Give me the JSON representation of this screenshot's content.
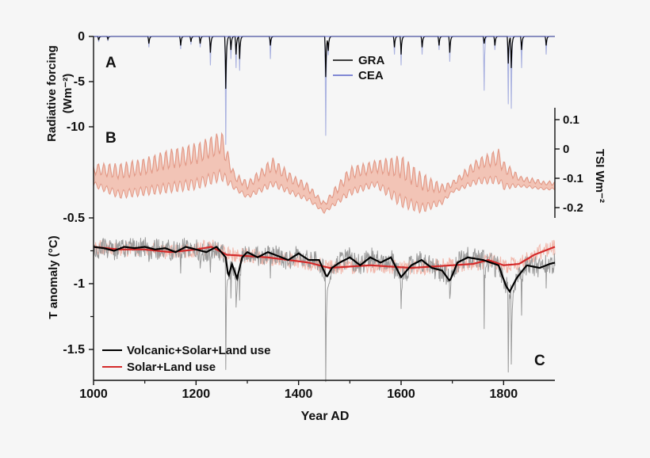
{
  "chart_data": [
    {
      "panel": "A",
      "type": "line",
      "ylabel": "Radiative forcing (Wm⁻²)",
      "ylabel_line1": "Radiative forcing",
      "ylabel_line2": "(Wm⁻²)",
      "ylim": [
        -12,
        0.5
      ],
      "yticks": [
        "0",
        "-5",
        "-10"
      ],
      "legend": [
        "GRA",
        "CEA"
      ],
      "legend_placement": "top-center",
      "series": [
        {
          "name": "GRA",
          "color": "#000000"
        },
        {
          "name": "CEA",
          "color": "#5a64c8"
        }
      ],
      "baseline": 0,
      "eruptions": [
        {
          "year": 1010,
          "GRA": -0.4,
          "CEA": -0.6
        },
        {
          "year": 1028,
          "GRA": -0.3,
          "CEA": -0.5
        },
        {
          "year": 1108,
          "GRA": -0.8,
          "CEA": -1.2
        },
        {
          "year": 1170,
          "GRA": -1.0,
          "CEA": -1.4
        },
        {
          "year": 1190,
          "GRA": -0.6,
          "CEA": -0.9
        },
        {
          "year": 1208,
          "GRA": -0.8,
          "CEA": -1.2
        },
        {
          "year": 1228,
          "GRA": -1.8,
          "CEA": -3.2
        },
        {
          "year": 1258,
          "GRA": -5.8,
          "CEA": -12.0
        },
        {
          "year": 1268,
          "GRA": -1.5,
          "CEA": -2.5
        },
        {
          "year": 1278,
          "GRA": -2.0,
          "CEA": -3.5
        },
        {
          "year": 1285,
          "GRA": -2.5,
          "CEA": -3.8
        },
        {
          "year": 1345,
          "GRA": -1.0,
          "CEA": -2.5
        },
        {
          "year": 1453,
          "GRA": -4.5,
          "CEA": -11.0
        },
        {
          "year": 1458,
          "GRA": -1.5,
          "CEA": -2.0
        },
        {
          "year": 1587,
          "GRA": -1.2,
          "CEA": -2.0
        },
        {
          "year": 1600,
          "GRA": -2.0,
          "CEA": -3.2
        },
        {
          "year": 1641,
          "GRA": -1.2,
          "CEA": -2.0
        },
        {
          "year": 1674,
          "GRA": -1.0,
          "CEA": -1.5
        },
        {
          "year": 1695,
          "GRA": -1.8,
          "CEA": -2.8
        },
        {
          "year": 1762,
          "GRA": -0.8,
          "CEA": -6.0
        },
        {
          "year": 1783,
          "GRA": -1.0,
          "CEA": -1.5
        },
        {
          "year": 1809,
          "GRA": -3.0,
          "CEA": -7.5
        },
        {
          "year": 1815,
          "GRA": -3.5,
          "CEA": -8.0
        },
        {
          "year": 1835,
          "GRA": -1.5,
          "CEA": -3.5
        },
        {
          "year": 1883,
          "GRA": -1.0,
          "CEA": -2.0
        }
      ]
    },
    {
      "panel": "B",
      "type": "area",
      "ylabel": "TSI Wm⁻²",
      "ylim": [
        -0.23,
        0.15
      ],
      "yticks": [
        "0.1",
        "0",
        "-0.1",
        "-0.2"
      ],
      "color": "#e29a88",
      "x": [
        1000,
        1050,
        1100,
        1150,
        1200,
        1250,
        1275,
        1300,
        1350,
        1390,
        1420,
        1450,
        1500,
        1550,
        1600,
        1640,
        1680,
        1700,
        1750,
        1790,
        1800,
        1830,
        1880,
        1900
      ],
      "upper": [
        -0.05,
        -0.05,
        -0.03,
        0.0,
        0.02,
        0.06,
        -0.08,
        -0.11,
        -0.03,
        -0.09,
        -0.12,
        -0.18,
        -0.06,
        -0.04,
        -0.02,
        -0.08,
        -0.12,
        -0.11,
        -0.03,
        0.0,
        -0.04,
        -0.09,
        -0.11,
        -0.11
      ],
      "lower": [
        -0.13,
        -0.17,
        -0.16,
        -0.15,
        -0.14,
        -0.11,
        -0.14,
        -0.17,
        -0.13,
        -0.16,
        -0.18,
        -0.22,
        -0.16,
        -0.13,
        -0.2,
        -0.22,
        -0.19,
        -0.15,
        -0.12,
        -0.12,
        -0.14,
        -0.13,
        -0.14,
        -0.14
      ]
    },
    {
      "panel": "C",
      "type": "line",
      "xlabel": "Year AD",
      "ylabel": "T anomaly (°C)",
      "xlim": [
        1000,
        1900
      ],
      "ylim": [
        -1.65,
        -0.5
      ],
      "xticks": [
        "1000",
        "1200",
        "1400",
        "1600",
        "1800"
      ],
      "yticks": [
        "-0.5",
        "-1",
        "-1.5"
      ],
      "legend_placement": "bottom-left",
      "series": [
        {
          "name": "Volcanic+Solar+Land use",
          "color": "#000000",
          "x": [
            1000,
            1020,
            1040,
            1060,
            1080,
            1100,
            1120,
            1140,
            1160,
            1180,
            1200,
            1220,
            1240,
            1258,
            1263,
            1270,
            1280,
            1290,
            1300,
            1320,
            1340,
            1360,
            1380,
            1400,
            1420,
            1440,
            1455,
            1465,
            1480,
            1500,
            1520,
            1540,
            1560,
            1580,
            1600,
            1620,
            1640,
            1660,
            1680,
            1695,
            1710,
            1730,
            1760,
            1790,
            1805,
            1812,
            1825,
            1845,
            1870,
            1890,
            1900
          ],
          "y": [
            -0.72,
            -0.73,
            -0.75,
            -0.72,
            -0.73,
            -0.72,
            -0.74,
            -0.73,
            -0.76,
            -0.72,
            -0.74,
            -0.76,
            -0.72,
            -0.8,
            -0.95,
            -0.85,
            -0.96,
            -0.8,
            -0.76,
            -0.8,
            -0.76,
            -0.79,
            -0.82,
            -0.77,
            -0.82,
            -0.82,
            -0.95,
            -0.88,
            -0.84,
            -0.8,
            -0.86,
            -0.8,
            -0.84,
            -0.8,
            -0.95,
            -0.86,
            -0.82,
            -0.88,
            -0.9,
            -0.98,
            -0.84,
            -0.8,
            -0.82,
            -0.86,
            -1.02,
            -1.06,
            -0.96,
            -0.86,
            -0.88,
            -0.85,
            -0.84
          ]
        },
        {
          "name": "Solar+Land use",
          "color": "#d42a2a",
          "x": [
            1000,
            1050,
            1100,
            1150,
            1200,
            1230,
            1260,
            1300,
            1340,
            1380,
            1420,
            1460,
            1500,
            1540,
            1580,
            1620,
            1660,
            1700,
            1740,
            1770,
            1800,
            1830,
            1860,
            1900
          ],
          "y": [
            -0.72,
            -0.74,
            -0.74,
            -0.76,
            -0.74,
            -0.72,
            -0.78,
            -0.79,
            -0.8,
            -0.82,
            -0.84,
            -0.88,
            -0.87,
            -0.86,
            -0.87,
            -0.88,
            -0.87,
            -0.86,
            -0.85,
            -0.82,
            -0.86,
            -0.85,
            -0.78,
            -0.72
          ]
        }
      ]
    }
  ]
}
